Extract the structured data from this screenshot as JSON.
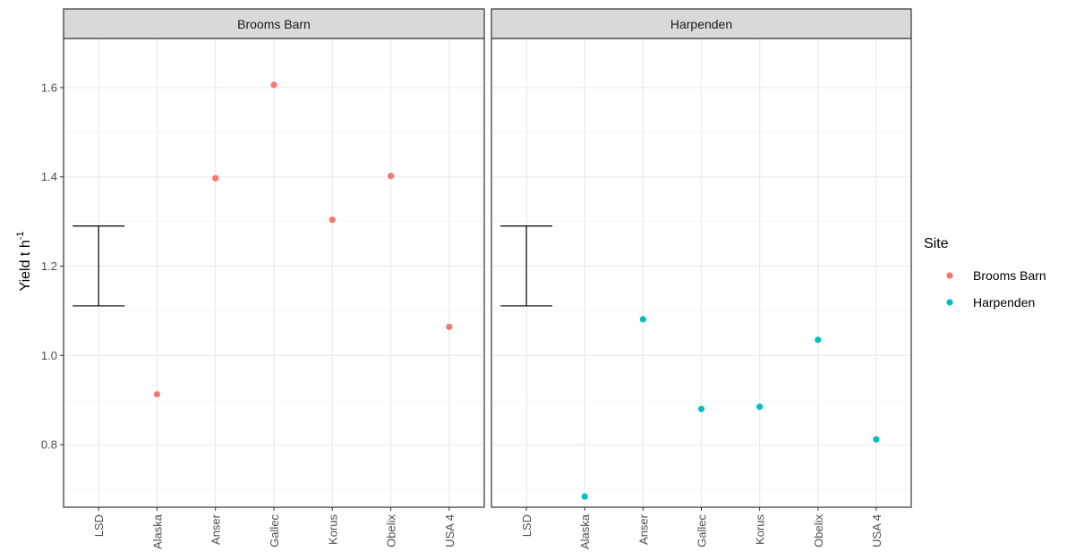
{
  "chart_data": {
    "type": "scatter",
    "facets": [
      "Brooms Barn",
      "Harpenden"
    ],
    "categories": [
      "LSD",
      "Alaska",
      "Anser",
      "Gallec",
      "Korus",
      "Obelix",
      "USA 4"
    ],
    "ylabel": {
      "text": "Yield t h",
      "superscript": "-1"
    },
    "ylim": [
      0.66,
      1.71
    ],
    "y_ticks": [
      0.8,
      1.0,
      1.2,
      1.4,
      1.6
    ],
    "y_tick_labels": [
      "0.8",
      "1.0",
      "1.2",
      "1.4",
      "1.6"
    ],
    "series": [
      {
        "name": "Brooms Barn",
        "color": "#F8766D",
        "facet": "Brooms Barn",
        "points": [
          {
            "x": "Alaska",
            "y": 0.913
          },
          {
            "x": "Anser",
            "y": 1.397
          },
          {
            "x": "Gallec",
            "y": 1.606
          },
          {
            "x": "Korus",
            "y": 1.304
          },
          {
            "x": "Obelix",
            "y": 1.402
          },
          {
            "x": "USA 4",
            "y": 1.064
          }
        ]
      },
      {
        "name": "Harpenden",
        "color": "#00BFC4",
        "facet": "Harpenden",
        "points": [
          {
            "x": "Alaska",
            "y": 0.684
          },
          {
            "x": "Anser",
            "y": 1.081
          },
          {
            "x": "Gallec",
            "y": 0.88
          },
          {
            "x": "Korus",
            "y": 0.885
          },
          {
            "x": "Obelix",
            "y": 1.035
          },
          {
            "x": "USA 4",
            "y": 0.812
          }
        ]
      }
    ],
    "error_bars": [
      {
        "facet": "Brooms Barn",
        "x": "LSD",
        "ymin": 1.111,
        "ymax": 1.29
      },
      {
        "facet": "Harpenden",
        "x": "LSD",
        "ymin": 1.111,
        "ymax": 1.29
      }
    ],
    "legend": {
      "title": "Site",
      "placement": "right",
      "entries": [
        {
          "label": "Brooms Barn",
          "color": "#F8766D"
        },
        {
          "label": "Harpenden",
          "color": "#00BFC4"
        }
      ]
    },
    "grid": true,
    "theme_colors": {
      "strip_fill": "#D9D9D9",
      "grid_major": "#EBEBEB",
      "grid_minor": "#F4F4F4",
      "panel_border": "#333333"
    }
  }
}
